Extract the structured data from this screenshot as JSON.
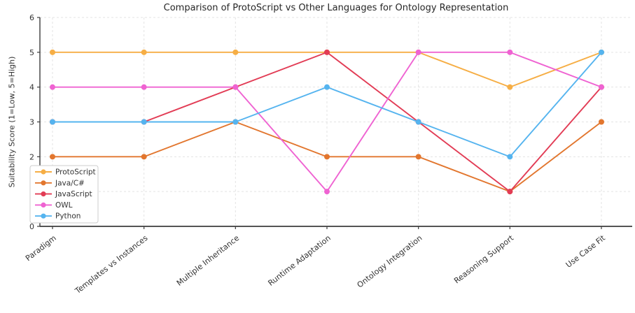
{
  "chart_data": {
    "type": "line",
    "title": "Comparison of ProtoScript vs Other Languages for Ontology Representation",
    "xlabel": "",
    "ylabel": "Suitability Score (1=Low, 5=High)",
    "ylim": [
      0,
      6
    ],
    "yticks": [
      0,
      1,
      2,
      3,
      4,
      5,
      6
    ],
    "grid": true,
    "grid_color": "#e3e3e3",
    "spine_color": "#3c3c3c",
    "tick_label_color": "#333333",
    "legend_position": "lower-left",
    "x_label_rotation_deg": -38,
    "categories": [
      "Paradigm",
      "Templates vs Instances",
      "Multiple Inheritance",
      "Runtime Adaptation",
      "Ontology Integration",
      "Reasoning Support",
      "Use Case Fit"
    ],
    "series": [
      {
        "name": "ProtoScript",
        "color": "#F6AE45",
        "values": [
          5,
          5,
          5,
          5,
          5,
          4,
          5
        ]
      },
      {
        "name": "Java/C#",
        "color": "#E2762E",
        "values": [
          2,
          2,
          3,
          2,
          2,
          1,
          3
        ]
      },
      {
        "name": "JavaScript",
        "color": "#E23C55",
        "values": [
          3,
          3,
          4,
          5,
          3,
          1,
          4
        ]
      },
      {
        "name": "OWL",
        "color": "#EF63D2",
        "values": [
          4,
          4,
          4,
          1,
          5,
          5,
          4
        ]
      },
      {
        "name": "Python",
        "color": "#55B4EF",
        "values": [
          3,
          3,
          3,
          4,
          3,
          2,
          5
        ]
      }
    ]
  }
}
